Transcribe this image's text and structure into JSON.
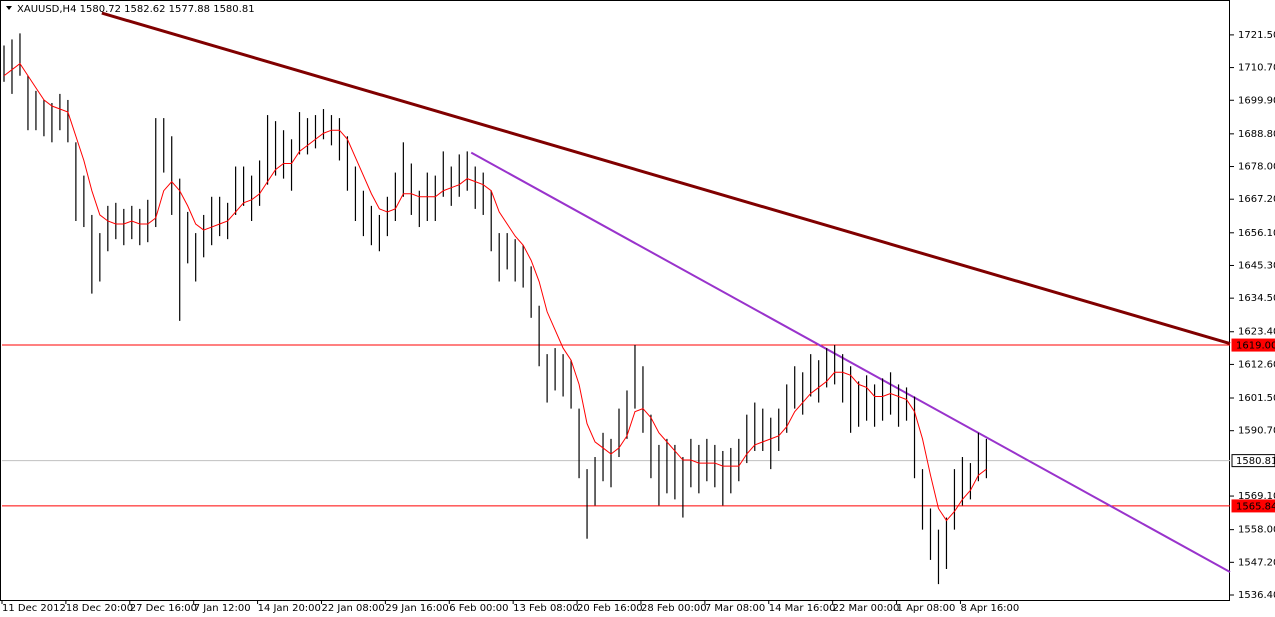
{
  "chart_data": {
    "type": "ohlc",
    "title": "XAUUSD,H4  1580.72 1582.62 1577.88 1580.81",
    "xlim": [
      0,
      153.75
    ],
    "ylim": [
      1534.75,
      1732.7
    ],
    "yticks": [
      {
        "value": 1721.5,
        "label": "1721.50"
      },
      {
        "value": 1710.7,
        "label": "1710.70"
      },
      {
        "value": 1699.9,
        "label": "1699.90"
      },
      {
        "value": 1688.8,
        "label": "1688.80"
      },
      {
        "value": 1678,
        "label": "1678.00"
      },
      {
        "value": 1667.2,
        "label": "1667.20"
      },
      {
        "value": 1656.1,
        "label": "1656.10"
      },
      {
        "value": 1645.3,
        "label": "1645.30"
      },
      {
        "value": 1634.5,
        "label": "1634.50"
      },
      {
        "value": 1623.4,
        "label": "1623.40"
      },
      {
        "value": 1612.6,
        "label": "1612.60"
      },
      {
        "value": 1601.5,
        "label": "1601.50"
      },
      {
        "value": 1590.7,
        "label": "1590.70"
      },
      {
        "value": 1569.1,
        "label": "1569.10"
      },
      {
        "value": 1558,
        "label": "1558.00"
      },
      {
        "value": 1547.2,
        "label": "1547.20"
      },
      {
        "value": 1536.4,
        "label": "1536.40"
      }
    ],
    "xticks": [
      {
        "value": 0,
        "label": "11 Dec 2012"
      },
      {
        "value": 8,
        "label": "18 Dec 20:00"
      },
      {
        "value": 16,
        "label": "27 Dec 16:00"
      },
      {
        "value": 24,
        "label": "7 Jan 12:00"
      },
      {
        "value": 32,
        "label": "14 Jan 20:00"
      },
      {
        "value": 40,
        "label": "22 Jan 08:00"
      },
      {
        "value": 48,
        "label": "29 Jan 16:00"
      },
      {
        "value": 56,
        "label": "6 Feb 00:00"
      },
      {
        "value": 64,
        "label": "13 Feb 08:00"
      },
      {
        "value": 72,
        "label": "20 Feb 16:00"
      },
      {
        "value": 80,
        "label": "28 Feb 00:00"
      },
      {
        "value": 88,
        "label": "7 Mar 08:00"
      },
      {
        "value": 96,
        "label": "14 Mar 16:00"
      },
      {
        "value": 104,
        "label": "22 Mar 00:00"
      },
      {
        "value": 112,
        "label": "1 Apr 08:00"
      },
      {
        "value": 120,
        "label": "8 Apr 16:00"
      }
    ],
    "bar_color": "#000000",
    "high": [
      1718,
      1720,
      1722,
      1708,
      1703,
      1700,
      1699,
      1702,
      1700,
      1686,
      1675,
      1662,
      1656,
      1665,
      1666,
      1664,
      1665,
      1664,
      1667,
      1694,
      1694,
      1688,
      1674,
      1663,
      1656,
      1662,
      1668,
      1668,
      1666,
      1678,
      1678,
      1675,
      1680,
      1695,
      1693,
      1690,
      1687,
      1696,
      1694,
      1695,
      1697,
      1695,
      1694,
      1688,
      1678,
      1670,
      1665,
      1662,
      1668,
      1676,
      1686,
      1679,
      1670,
      1676,
      1675,
      1683,
      1678,
      1682,
      1683,
      1678,
      1676,
      1670,
      1656,
      1656,
      1654,
      1652,
      1645,
      1632,
      1616,
      1618,
      1616,
      1614,
      1598,
      1578,
      1582,
      1590,
      1588,
      1598,
      1604,
      1619,
      1612,
      1596,
      1586,
      1588,
      1586,
      1582,
      1588,
      1586,
      1588,
      1586,
      1584,
      1585,
      1588,
      1596,
      1600,
      1598,
      1595,
      1598,
      1606,
      1612,
      1610,
      1616,
      1614,
      1618,
      1619,
      1616,
      1612,
      1607,
      1609,
      1606,
      1608,
      1610,
      1606,
      1605,
      1602,
      1578,
      1565,
      1558,
      1562,
      1578,
      1582,
      1580,
      1590,
      1588
    ],
    "low": [
      1706,
      1702,
      1708,
      1690,
      1690,
      1688,
      1686,
      1690,
      1686,
      1660,
      1658,
      1636,
      1640,
      1650,
      1654,
      1652,
      1654,
      1652,
      1653,
      1658,
      1676,
      1662,
      1627,
      1646,
      1640,
      1648,
      1652,
      1655,
      1654,
      1662,
      1665,
      1660,
      1665,
      1672,
      1675,
      1674,
      1670,
      1682,
      1682,
      1684,
      1687,
      1685,
      1680,
      1670,
      1660,
      1655,
      1652,
      1650,
      1655,
      1660,
      1668,
      1662,
      1658,
      1660,
      1660,
      1668,
      1665,
      1668,
      1670,
      1664,
      1662,
      1650,
      1640,
      1644,
      1640,
      1638,
      1628,
      1612,
      1600,
      1604,
      1602,
      1598,
      1575,
      1555,
      1566,
      1574,
      1572,
      1582,
      1588,
      1598,
      1590,
      1575,
      1566,
      1570,
      1568,
      1562,
      1572,
      1570,
      1574,
      1572,
      1566,
      1570,
      1574,
      1580,
      1584,
      1584,
      1578,
      1584,
      1590,
      1598,
      1596,
      1602,
      1600,
      1605,
      1606,
      1600,
      1590,
      1592,
      1594,
      1592,
      1594,
      1596,
      1592,
      1594,
      1575,
      1558,
      1548,
      1540,
      1545,
      1558,
      1566,
      1568,
      1574,
      1575
    ],
    "ma": {
      "color": "#ff0000",
      "values": [
        1708,
        1710,
        1712,
        1708,
        1704,
        1700,
        1698,
        1697,
        1696,
        1688,
        1680,
        1670,
        1662,
        1660,
        1659,
        1659,
        1660,
        1659,
        1659,
        1661,
        1670,
        1673,
        1670,
        1665,
        1659,
        1657,
        1658,
        1659,
        1660,
        1663,
        1666,
        1667,
        1669,
        1673,
        1677,
        1679,
        1679,
        1683,
        1685,
        1687,
        1689,
        1690,
        1690,
        1687,
        1681,
        1675,
        1669,
        1664,
        1663,
        1664,
        1669,
        1669,
        1668,
        1668,
        1668,
        1670,
        1671,
        1672,
        1674,
        1673,
        1672,
        1670,
        1663,
        1659,
        1655,
        1652,
        1647,
        1640,
        1630,
        1624,
        1618,
        1614,
        1606,
        1593,
        1587,
        1585,
        1583,
        1585,
        1589,
        1597,
        1598,
        1595,
        1590,
        1587,
        1584,
        1581,
        1581,
        1580,
        1580,
        1580,
        1579,
        1579,
        1579,
        1583,
        1586,
        1587,
        1588,
        1589,
        1592,
        1597,
        1600,
        1603,
        1605,
        1607,
        1610,
        1610,
        1609,
        1606,
        1605,
        1602,
        1602,
        1603,
        1602,
        1601,
        1597,
        1588,
        1576,
        1565,
        1561,
        1564,
        1568,
        1571,
        1576,
        1578
      ]
    },
    "hlines": [
      {
        "value": 1619,
        "label": "1619.00",
        "color": "#ff0000"
      },
      {
        "value": 1565.84,
        "label": "1565.84",
        "color": "#ff0000"
      },
      {
        "value": 1580.81,
        "label": "1580.81",
        "color": "#c0c0c0"
      }
    ],
    "trendlines": [
      {
        "color": "#800000",
        "x": [
          12.5,
          153.75
        ],
        "y": [
          1728.7,
          1619.5
        ]
      },
      {
        "color": "#9933cc",
        "x": [
          58.75,
          153.75
        ],
        "y": [
          1682.6,
          1544
        ]
      }
    ]
  }
}
